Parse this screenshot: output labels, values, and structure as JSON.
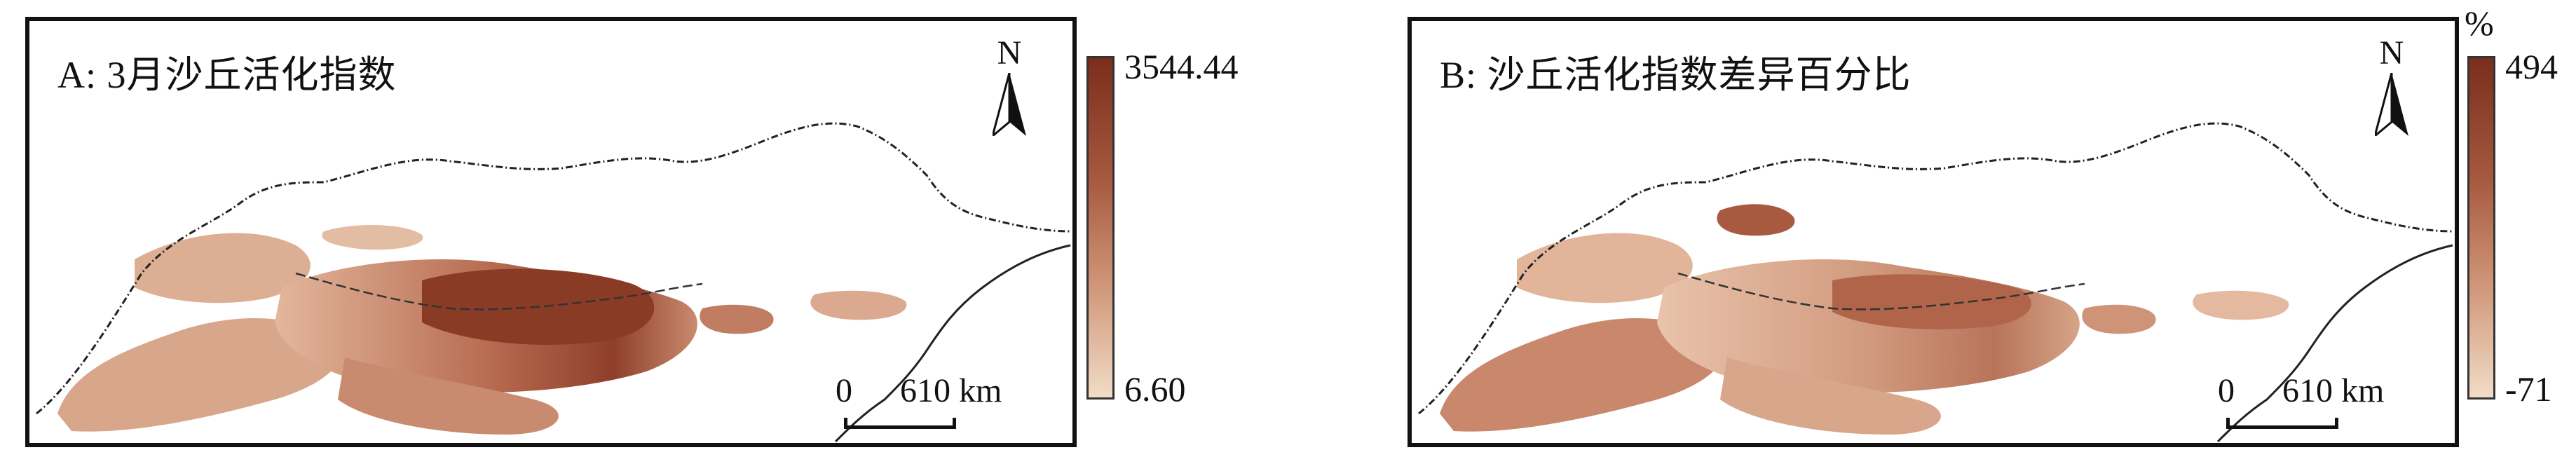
{
  "panels": [
    {
      "title": "A: 3月沙丘活化指数",
      "north_label": "N",
      "scale": {
        "zero": "0",
        "distance": "610 km"
      },
      "legend": {
        "max": "3544.44",
        "min": "6.60",
        "unit": ""
      }
    },
    {
      "title": "B: 沙丘活化指数差异百分比",
      "north_label": "N",
      "scale": {
        "zero": "0",
        "distance": "610 km"
      },
      "legend": {
        "max": "494",
        "min": "-71",
        "unit": "%"
      }
    }
  ],
  "colors": {
    "low": "#f1dcc6",
    "mid": "#cd9275",
    "high": "#7a2e1c",
    "border": "#111111"
  }
}
